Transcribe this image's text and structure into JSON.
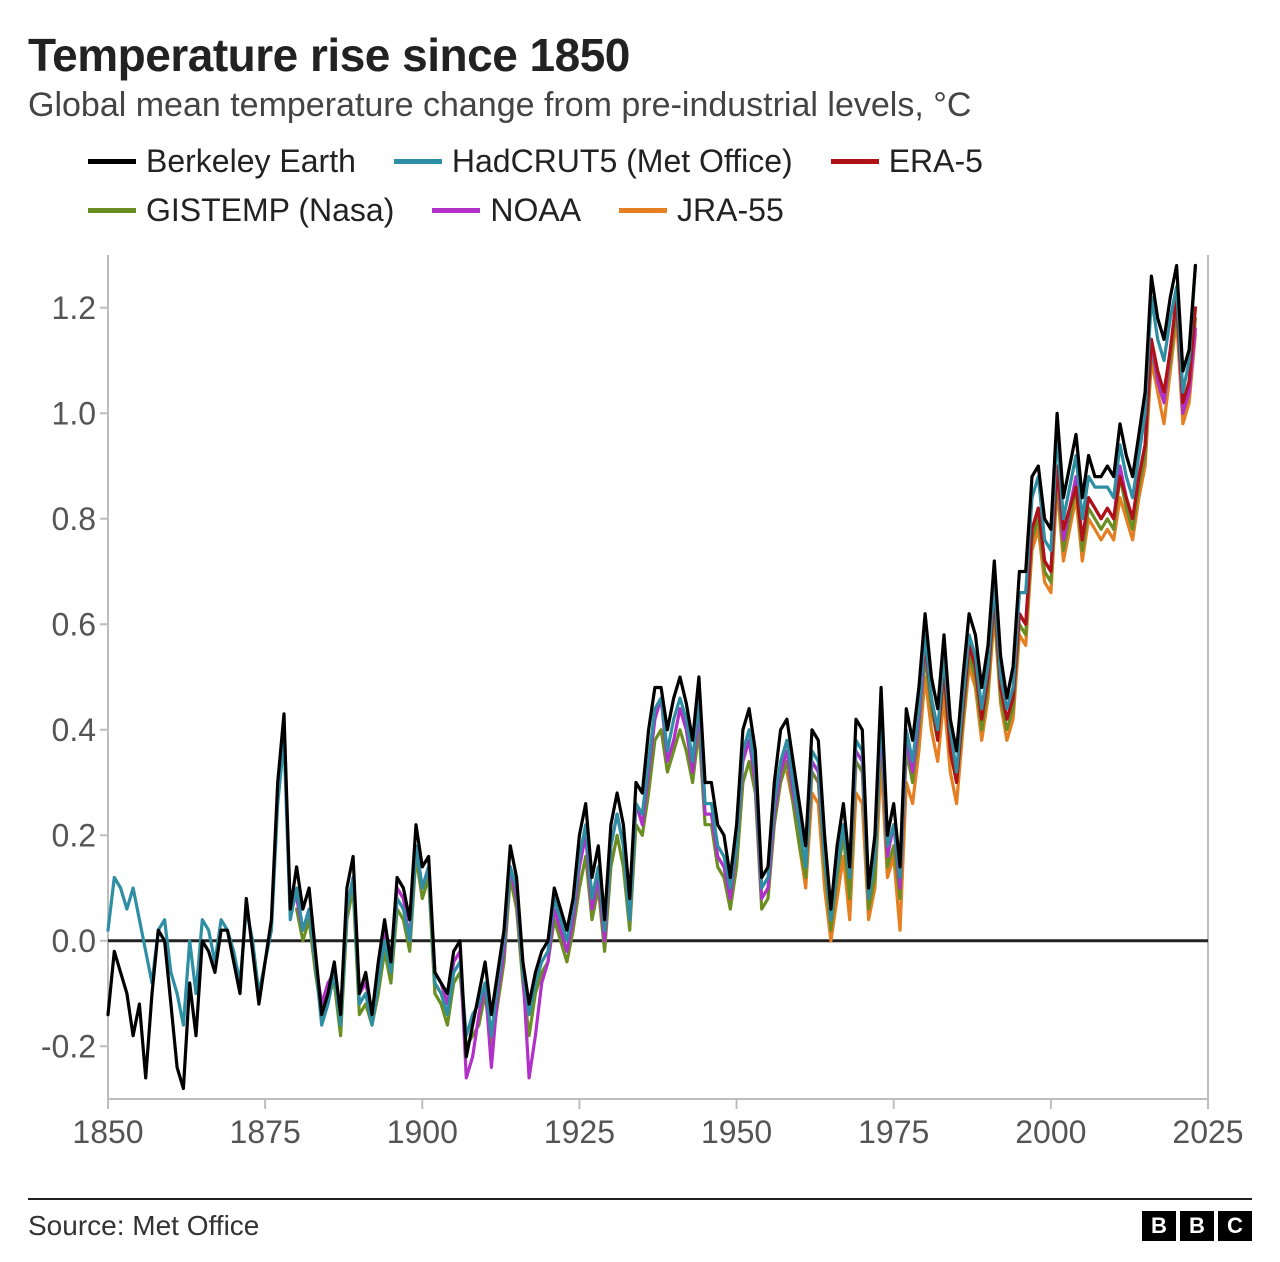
{
  "title": "Temperature rise since 1850",
  "subtitle": "Global mean temperature change from pre-industrial levels, °C",
  "source_label": "Source: Met Office",
  "logo_letters": [
    "B",
    "B",
    "C"
  ],
  "chart": {
    "type": "line",
    "background_color": "#ffffff",
    "axis_color": "#bdbdbd",
    "zero_line_color": "#222222",
    "tick_label_color": "#555555",
    "tick_label_fontsize": 32,
    "line_width": 3.2,
    "x": {
      "min": 1850,
      "max": 2025,
      "tick_step": 25,
      "ticks": [
        1850,
        1875,
        1900,
        1925,
        1950,
        1975,
        2000,
        2025
      ]
    },
    "y": {
      "min": -0.3,
      "max": 1.3,
      "tick_step": 0.2,
      "ticks": [
        -0.2,
        0.0,
        0.2,
        0.4,
        0.6,
        0.8,
        1.0,
        1.2
      ]
    },
    "legend_order": [
      "berkeley",
      "hadcrut5",
      "era5",
      "gistemp",
      "noaa",
      "jra55"
    ],
    "series": {
      "berkeley": {
        "label": "Berkeley Earth",
        "color": "#000000",
        "start_year": 1850,
        "values": [
          -0.14,
          -0.02,
          -0.06,
          -0.1,
          -0.18,
          -0.12,
          -0.26,
          -0.1,
          0.02,
          0.0,
          -0.12,
          -0.24,
          -0.28,
          -0.08,
          -0.18,
          0.0,
          -0.02,
          -0.06,
          0.02,
          0.02,
          -0.04,
          -0.1,
          0.08,
          -0.02,
          -0.12,
          -0.04,
          0.04,
          0.3,
          0.43,
          0.06,
          0.14,
          0.06,
          0.1,
          -0.02,
          -0.14,
          -0.1,
          -0.04,
          -0.14,
          0.1,
          0.16,
          -0.1,
          -0.06,
          -0.14,
          -0.04,
          0.04,
          -0.04,
          0.12,
          0.1,
          0.04,
          0.22,
          0.14,
          0.16,
          -0.06,
          -0.08,
          -0.1,
          -0.02,
          0.0,
          -0.22,
          -0.16,
          -0.1,
          -0.04,
          -0.14,
          -0.06,
          0.02,
          0.18,
          0.12,
          -0.04,
          -0.12,
          -0.06,
          -0.02,
          0.0,
          0.1,
          0.06,
          0.02,
          0.08,
          0.2,
          0.26,
          0.12,
          0.18,
          0.04,
          0.22,
          0.28,
          0.22,
          0.08,
          0.3,
          0.28,
          0.4,
          0.48,
          0.48,
          0.4,
          0.46,
          0.5,
          0.45,
          0.38,
          0.5,
          0.3,
          0.3,
          0.22,
          0.2,
          0.12,
          0.22,
          0.4,
          0.44,
          0.36,
          0.12,
          0.14,
          0.3,
          0.4,
          0.42,
          0.34,
          0.26,
          0.18,
          0.4,
          0.38,
          0.2,
          0.06,
          0.18,
          0.26,
          0.14,
          0.42,
          0.4,
          0.1,
          0.2,
          0.48,
          0.2,
          0.26,
          0.14,
          0.44,
          0.38,
          0.48,
          0.62,
          0.5,
          0.44,
          0.58,
          0.42,
          0.36,
          0.5,
          0.62,
          0.58,
          0.48,
          0.56,
          0.72,
          0.54,
          0.46,
          0.52,
          0.7,
          0.7,
          0.88,
          0.9,
          0.8,
          0.78,
          1.0,
          0.84,
          0.9,
          0.96,
          0.84,
          0.92,
          0.88,
          0.88,
          0.9,
          0.88,
          0.98,
          0.92,
          0.88,
          0.96,
          1.04,
          1.26,
          1.18,
          1.14,
          1.22,
          1.28,
          1.08,
          1.12,
          1.28
        ]
      },
      "hadcrut5": {
        "label": "HadCRUT5 (Met Office)",
        "color": "#2e8ea3",
        "start_year": 1850,
        "values": [
          0.02,
          0.12,
          0.1,
          0.06,
          0.1,
          0.04,
          -0.02,
          -0.08,
          0.02,
          0.04,
          -0.06,
          -0.1,
          -0.16,
          0.0,
          -0.1,
          0.04,
          0.02,
          -0.04,
          0.04,
          0.02,
          -0.02,
          -0.08,
          0.06,
          0.0,
          -0.1,
          -0.04,
          0.02,
          0.26,
          0.38,
          0.04,
          0.1,
          0.02,
          0.06,
          -0.04,
          -0.16,
          -0.12,
          -0.06,
          -0.16,
          0.06,
          0.12,
          -0.12,
          -0.1,
          -0.16,
          -0.08,
          0.0,
          -0.06,
          0.08,
          0.06,
          0.0,
          0.18,
          0.1,
          0.14,
          -0.08,
          -0.1,
          -0.14,
          -0.06,
          -0.04,
          -0.18,
          -0.14,
          -0.12,
          -0.08,
          -0.18,
          -0.08,
          0.0,
          0.14,
          0.1,
          -0.06,
          -0.14,
          -0.08,
          -0.04,
          -0.02,
          0.08,
          0.04,
          0.0,
          0.06,
          0.16,
          0.22,
          0.08,
          0.14,
          0.02,
          0.18,
          0.24,
          0.18,
          0.04,
          0.26,
          0.24,
          0.34,
          0.44,
          0.46,
          0.36,
          0.42,
          0.46,
          0.42,
          0.34,
          0.46,
          0.26,
          0.26,
          0.18,
          0.16,
          0.1,
          0.18,
          0.36,
          0.4,
          0.32,
          0.1,
          0.12,
          0.26,
          0.34,
          0.38,
          0.3,
          0.22,
          0.14,
          0.36,
          0.34,
          0.16,
          0.04,
          0.14,
          0.22,
          0.12,
          0.38,
          0.36,
          0.08,
          0.16,
          0.44,
          0.18,
          0.22,
          0.12,
          0.4,
          0.34,
          0.44,
          0.58,
          0.46,
          0.4,
          0.54,
          0.4,
          0.32,
          0.46,
          0.58,
          0.54,
          0.44,
          0.52,
          0.68,
          0.5,
          0.44,
          0.48,
          0.66,
          0.66,
          0.84,
          0.88,
          0.76,
          0.74,
          0.96,
          0.8,
          0.86,
          0.92,
          0.8,
          0.88,
          0.86,
          0.86,
          0.86,
          0.84,
          0.94,
          0.88,
          0.84,
          0.92,
          1.0,
          1.22,
          1.14,
          1.1,
          1.18,
          1.24,
          1.04,
          1.1,
          1.28
        ]
      },
      "era5": {
        "label": "ERA-5",
        "color": "#b01116",
        "start_year": 1979,
        "values": [
          0.46,
          0.56,
          0.46,
          0.38,
          0.52,
          0.36,
          0.3,
          0.44,
          0.56,
          0.52,
          0.42,
          0.5,
          0.66,
          0.48,
          0.42,
          0.46,
          0.62,
          0.6,
          0.78,
          0.82,
          0.72,
          0.7,
          0.9,
          0.78,
          0.82,
          0.86,
          0.76,
          0.84,
          0.82,
          0.8,
          0.82,
          0.8,
          0.88,
          0.84,
          0.8,
          0.88,
          0.94,
          1.14,
          1.08,
          1.04,
          1.12,
          1.22,
          1.02,
          1.06,
          1.2
        ]
      },
      "gistemp": {
        "label": "GISTEMP (Nasa)",
        "color": "#6b8e23",
        "start_year": 1880,
        "values": [
          0.06,
          0.0,
          0.04,
          -0.06,
          -0.14,
          -0.1,
          -0.08,
          -0.18,
          0.04,
          0.1,
          -0.14,
          -0.12,
          -0.16,
          -0.1,
          -0.02,
          -0.08,
          0.06,
          0.04,
          -0.02,
          0.16,
          0.08,
          0.12,
          -0.1,
          -0.12,
          -0.16,
          -0.08,
          -0.06,
          -0.2,
          -0.18,
          -0.16,
          -0.1,
          -0.2,
          -0.12,
          -0.04,
          0.12,
          0.06,
          -0.08,
          -0.18,
          -0.1,
          -0.06,
          -0.04,
          0.04,
          0.0,
          -0.04,
          0.02,
          0.1,
          0.16,
          0.04,
          0.1,
          -0.02,
          0.14,
          0.2,
          0.14,
          0.02,
          0.22,
          0.2,
          0.28,
          0.38,
          0.4,
          0.32,
          0.36,
          0.4,
          0.36,
          0.3,
          0.4,
          0.22,
          0.22,
          0.14,
          0.12,
          0.06,
          0.14,
          0.3,
          0.34,
          0.28,
          0.06,
          0.08,
          0.22,
          0.3,
          0.34,
          0.26,
          0.18,
          0.12,
          0.32,
          0.3,
          0.14,
          0.02,
          0.12,
          0.2,
          0.08,
          0.34,
          0.32,
          0.06,
          0.12,
          0.4,
          0.14,
          0.18,
          0.08,
          0.36,
          0.3,
          0.4,
          0.54,
          0.44,
          0.38,
          0.5,
          0.36,
          0.3,
          0.42,
          0.54,
          0.5,
          0.4,
          0.48,
          0.64,
          0.46,
          0.4,
          0.44,
          0.6,
          0.58,
          0.76,
          0.8,
          0.7,
          0.68,
          0.88,
          0.74,
          0.8,
          0.86,
          0.74,
          0.82,
          0.8,
          0.78,
          0.8,
          0.78,
          0.88,
          0.82,
          0.78,
          0.86,
          0.92,
          1.12,
          1.06,
          1.02,
          1.1,
          1.2,
          1.0,
          1.04,
          1.18
        ]
      },
      "noaa": {
        "label": "NOAA",
        "color": "#b030c8",
        "start_year": 1880,
        "values": [
          0.08,
          0.02,
          0.06,
          -0.04,
          -0.12,
          -0.08,
          -0.06,
          -0.14,
          0.06,
          0.12,
          -0.1,
          -0.08,
          -0.14,
          -0.06,
          0.02,
          -0.04,
          0.1,
          0.08,
          0.0,
          0.18,
          0.1,
          0.14,
          -0.06,
          -0.08,
          -0.12,
          -0.04,
          -0.02,
          -0.26,
          -0.22,
          -0.14,
          -0.08,
          -0.24,
          -0.1,
          -0.02,
          0.14,
          0.08,
          -0.06,
          -0.26,
          -0.18,
          -0.08,
          -0.04,
          0.06,
          0.02,
          -0.02,
          0.04,
          0.14,
          0.2,
          0.06,
          0.12,
          0.0,
          0.18,
          0.24,
          0.18,
          0.04,
          0.26,
          0.22,
          0.32,
          0.42,
          0.46,
          0.34,
          0.38,
          0.44,
          0.4,
          0.32,
          0.44,
          0.24,
          0.24,
          0.16,
          0.14,
          0.08,
          0.18,
          0.34,
          0.38,
          0.3,
          0.08,
          0.1,
          0.24,
          0.32,
          0.36,
          0.28,
          0.22,
          0.14,
          0.34,
          0.32,
          0.16,
          0.04,
          0.14,
          0.22,
          0.12,
          0.36,
          0.34,
          0.08,
          0.16,
          0.42,
          0.16,
          0.22,
          0.1,
          0.38,
          0.32,
          0.42,
          0.56,
          0.46,
          0.4,
          0.52,
          0.38,
          0.32,
          0.44,
          0.56,
          0.52,
          0.42,
          0.5,
          0.66,
          0.48,
          0.42,
          0.46,
          0.62,
          0.6,
          0.78,
          0.82,
          0.72,
          0.7,
          0.9,
          0.76,
          0.82,
          0.88,
          0.76,
          0.84,
          0.82,
          0.8,
          0.82,
          0.8,
          0.9,
          0.84,
          0.8,
          0.88,
          0.94,
          1.14,
          1.06,
          1.02,
          1.12,
          1.22,
          1.0,
          1.04,
          1.16
        ]
      },
      "jra55": {
        "label": "JRA-55",
        "color": "#e67e22",
        "start_year": 1958,
        "values": [
          0.32,
          0.26,
          0.18,
          0.1,
          0.28,
          0.26,
          0.1,
          0.0,
          0.08,
          0.16,
          0.04,
          0.28,
          0.26,
          0.04,
          0.1,
          0.34,
          0.12,
          0.16,
          0.02,
          0.3,
          0.26,
          0.36,
          0.5,
          0.4,
          0.34,
          0.46,
          0.32,
          0.26,
          0.4,
          0.52,
          0.48,
          0.38,
          0.46,
          0.62,
          0.45,
          0.38,
          0.42,
          0.58,
          0.56,
          0.74,
          0.78,
          0.68,
          0.66,
          0.86,
          0.72,
          0.78,
          0.84,
          0.72,
          0.8,
          0.78,
          0.76,
          0.78,
          0.76,
          0.84,
          0.8,
          0.76,
          0.84,
          0.9,
          1.1,
          1.04,
          0.98,
          1.08,
          1.18,
          0.98,
          1.02,
          1.15
        ]
      }
    }
  }
}
